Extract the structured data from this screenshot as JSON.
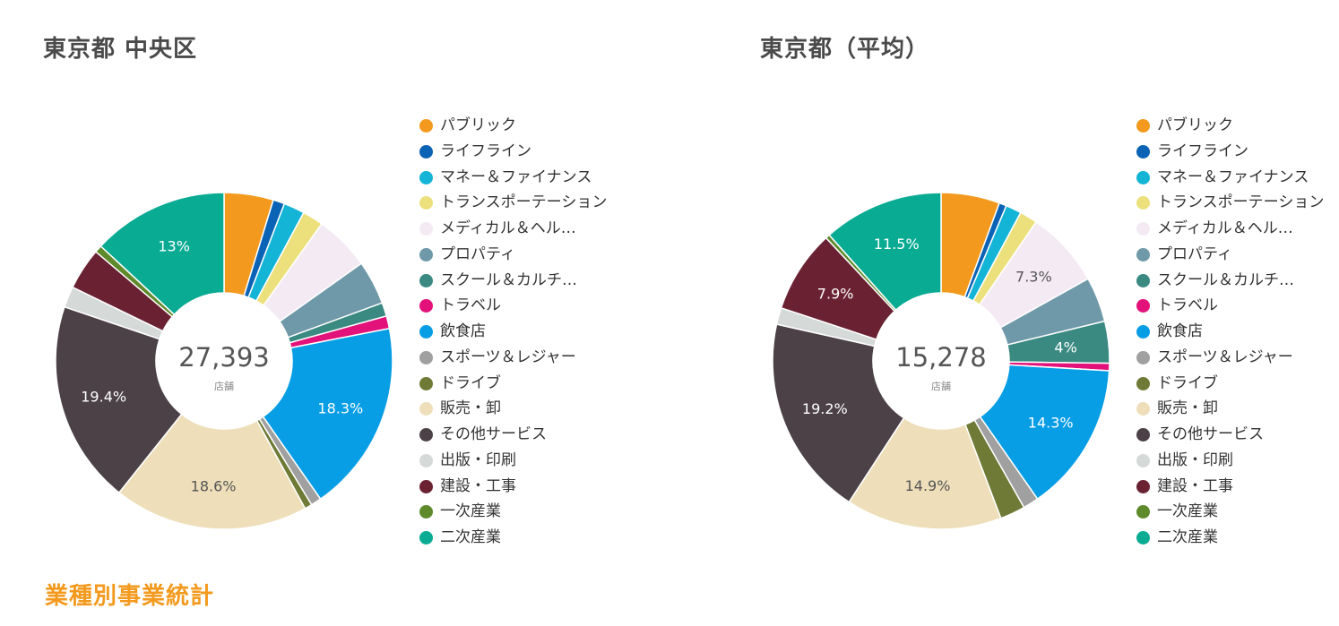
{
  "footer": {
    "title": "業種別事業統計"
  },
  "categories": [
    "パブリック",
    "ライフライン",
    "マネー＆ファイナンス",
    "トランスポーテーション",
    "メディカル＆ヘル…",
    "プロパティ",
    "スクール＆カルチ…",
    "トラベル",
    "飲食店",
    "スポーツ＆レジャー",
    "ドライブ",
    "販売・卸",
    "その他サービス",
    "出版・印刷",
    "建設・工事",
    "一次産業",
    "二次産業"
  ],
  "colors": [
    "#f39a1e",
    "#0b63b5",
    "#14b4d6",
    "#ece07c",
    "#f4eaf4",
    "#6f99a8",
    "#3a8a82",
    "#e2127a",
    "#079ee6",
    "#a0a0a0",
    "#6f7a36",
    "#eedfba",
    "#4b4146",
    "#d5d9d8",
    "#6a2233",
    "#5e8a2c",
    "#0aab93"
  ],
  "chart_data": [
    {
      "type": "pie",
      "title": "東京都 中央区",
      "total_label": "27,393",
      "unit_label": "店舗",
      "values": [
        4.7,
        1.1,
        2.0,
        2.0,
        5.3,
        4.2,
        1.3,
        1.2,
        18.3,
        1.0,
        0.7,
        18.6,
        19.4,
        2.0,
        4.0,
        0.7,
        13.0
      ],
      "slice_labels": [
        "",
        "",
        "",
        "",
        "",
        "",
        "",
        "",
        "18.3%",
        "",
        "",
        "18.6%",
        "19.4%",
        "",
        "",
        "",
        "13%"
      ]
    },
    {
      "type": "pie",
      "title": "東京都（平均）",
      "total_label": "15,278",
      "unit_label": "店舗",
      "values": [
        5.6,
        0.7,
        1.5,
        1.7,
        7.3,
        4.3,
        4.0,
        0.7,
        14.3,
        1.5,
        2.4,
        14.9,
        19.2,
        1.6,
        7.9,
        0.4,
        11.5
      ],
      "slice_labels": [
        "",
        "",
        "",
        "",
        "7.3%",
        "",
        "4%",
        "",
        "14.3%",
        "",
        "",
        "14.9%",
        "19.2%",
        "",
        "7.9%",
        "",
        "11.5%"
      ]
    }
  ]
}
